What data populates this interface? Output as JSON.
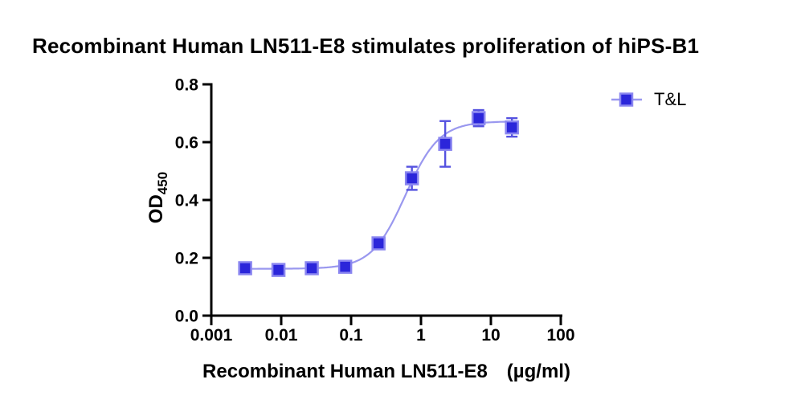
{
  "colors": {
    "background": "#ffffff",
    "axis": "#000000",
    "text": "#000000",
    "marker_fill": "#2b26da",
    "marker_edge": "#8a86f0",
    "error_bar": "#5552e0",
    "curve": "#9a98ef"
  },
  "chart_data": {
    "type": "scatter",
    "title": "Recombinant Human LN511-E8 stimulates proliferation of hiPS-B1",
    "xlabel": "Recombinant Human LN511-E8",
    "xlabel_unit": "(µg/ml)",
    "ylabel": "OD",
    "ylabel_subscript": "450",
    "x_scale": "log10",
    "xlim": [
      0.001,
      100
    ],
    "ylim": [
      0.0,
      0.8
    ],
    "x_ticks": [
      0.001,
      0.01,
      0.1,
      1,
      10,
      100
    ],
    "x_tick_labels": [
      "0.001",
      "0.01",
      "0.1",
      "1",
      "10",
      "100"
    ],
    "y_ticks": [
      0.0,
      0.2,
      0.4,
      0.6,
      0.8
    ],
    "y_tick_labels": [
      "0.0",
      "0.2",
      "0.4",
      "0.6",
      "0.8"
    ],
    "grid": false,
    "legend": {
      "label": "T&L",
      "position": "right",
      "marker": "filled-square-with-line"
    },
    "series": [
      {
        "name": "T&L",
        "x": [
          0.00305,
          0.00914,
          0.0274,
          0.0823,
          0.247,
          0.741,
          2.22,
          6.67,
          20
        ],
        "y": [
          0.164,
          0.158,
          0.164,
          0.169,
          0.25,
          0.475,
          0.594,
          0.683,
          0.651
        ],
        "yerr": [
          0,
          0,
          0,
          0,
          0,
          0.04,
          0.079,
          0.028,
          0.032
        ]
      }
    ],
    "fit_curve": {
      "model": "4PL",
      "bottom": 0.162,
      "top": 0.672,
      "ec50": 0.6,
      "hill": 1.8
    }
  }
}
